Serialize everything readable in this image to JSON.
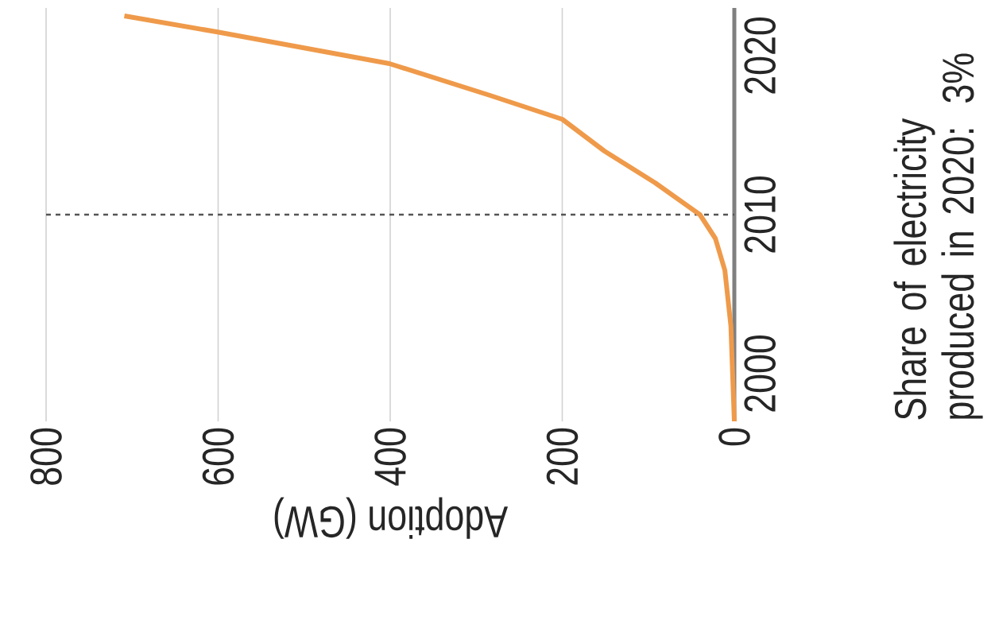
{
  "chart_data": {
    "type": "line",
    "xlabel": "Adoption (GW)",
    "x": [
      0,
      4,
      11,
      22,
      40,
      92,
      151,
      200,
      284,
      401,
      602,
      709
    ],
    "series": [
      {
        "color": "#ef9a4a",
        "values": [
          1997,
          2003,
          2006.5,
          2008.5,
          2010,
          2012,
          2014,
          2016,
          2017.5,
          2019.5,
          2021.5,
          2022.5
        ]
      }
    ],
    "xlim": [
      800,
      0
    ],
    "ylim": [
      1997,
      2023
    ],
    "xticks": [
      0,
      200,
      400,
      600,
      800
    ],
    "yticks": [
      2000,
      2010,
      2020
    ],
    "grid": "x",
    "marker": "none",
    "line_style": "solid",
    "ref_lines": [
      {
        "axis": "y",
        "value": 2010,
        "color": "#555555",
        "line_style": "dashed"
      }
    ],
    "annotations": [
      "Share of electricity produced in 2020: 3%"
    ]
  }
}
